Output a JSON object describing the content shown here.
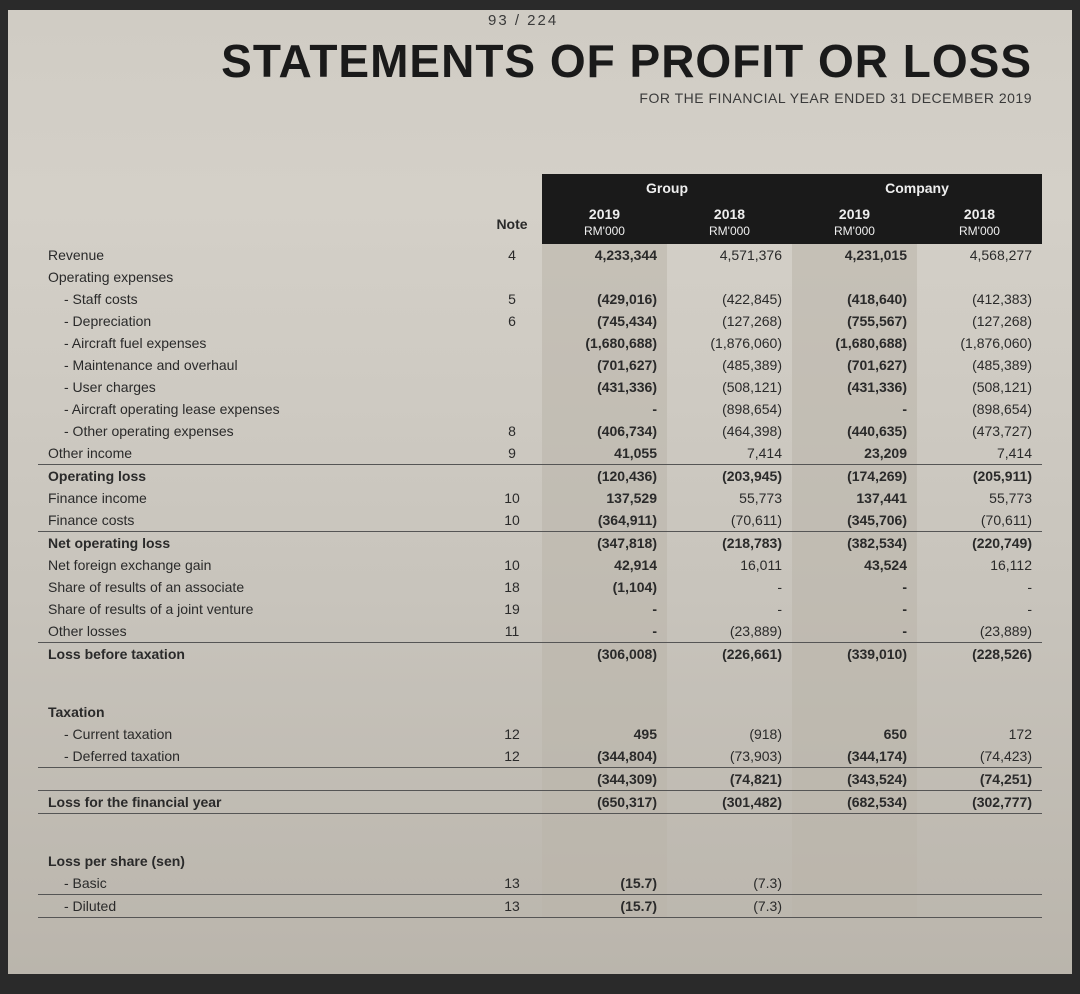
{
  "page_num": "93 / 224",
  "title": "STATEMENTS OF PROFIT OR LOSS",
  "subtitle": "FOR THE FINANCIAL YEAR ENDED 31 DECEMBER 2019",
  "columns": {
    "note_label": "Note",
    "group_label": "Group",
    "company_label": "Company",
    "year_2019": "2019",
    "year_2018": "2018",
    "unit": "RM'000"
  },
  "rows": [
    {
      "label": "Revenue",
      "note": "4",
      "g19": "4,233,344",
      "g18": "4,571,376",
      "c19": "4,231,015",
      "c18": "4,568,277"
    },
    {
      "label": "Operating expenses",
      "note": "",
      "g19": "",
      "g18": "",
      "c19": "",
      "c18": ""
    },
    {
      "label": "- Staff costs",
      "indent": true,
      "note": "5",
      "g19": "(429,016)",
      "g18": "(422,845)",
      "c19": "(418,640)",
      "c18": "(412,383)"
    },
    {
      "label": "- Depreciation",
      "indent": true,
      "note": "6",
      "g19": "(745,434)",
      "g18": "(127,268)",
      "c19": "(755,567)",
      "c18": "(127,268)"
    },
    {
      "label": "- Aircraft fuel expenses",
      "indent": true,
      "note": "",
      "g19": "(1,680,688)",
      "g18": "(1,876,060)",
      "c19": "(1,680,688)",
      "c18": "(1,876,060)"
    },
    {
      "label": "- Maintenance and overhaul",
      "indent": true,
      "note": "",
      "g19": "(701,627)",
      "g18": "(485,389)",
      "c19": "(701,627)",
      "c18": "(485,389)"
    },
    {
      "label": "- User charges",
      "indent": true,
      "note": "",
      "g19": "(431,336)",
      "g18": "(508,121)",
      "c19": "(431,336)",
      "c18": "(508,121)"
    },
    {
      "label": "- Aircraft operating lease expenses",
      "indent": true,
      "note": "",
      "g19": "-",
      "g18": "(898,654)",
      "c19": "-",
      "c18": "(898,654)"
    },
    {
      "label": "- Other operating expenses",
      "indent": true,
      "note": "8",
      "g19": "(406,734)",
      "g18": "(464,398)",
      "c19": "(440,635)",
      "c18": "(473,727)"
    },
    {
      "label": "Other income",
      "note": "9",
      "g19": "41,055",
      "g18": "7,414",
      "c19": "23,209",
      "c18": "7,414",
      "rule_bottom": true
    },
    {
      "label": "Operating loss",
      "bold": true,
      "note": "",
      "g19": "(120,436)",
      "g18": "(203,945)",
      "c19": "(174,269)",
      "c18": "(205,911)"
    },
    {
      "label": "Finance income",
      "note": "10",
      "g19": "137,529",
      "g18": "55,773",
      "c19": "137,441",
      "c18": "55,773"
    },
    {
      "label": "Finance costs",
      "note": "10",
      "g19": "(364,911)",
      "g18": "(70,611)",
      "c19": "(345,706)",
      "c18": "(70,611)",
      "rule_bottom": true
    },
    {
      "label": "Net operating loss",
      "bold": true,
      "note": "",
      "g19": "(347,818)",
      "g18": "(218,783)",
      "c19": "(382,534)",
      "c18": "(220,749)"
    },
    {
      "label": "Net foreign exchange gain",
      "note": "10",
      "g19": "42,914",
      "g18": "16,011",
      "c19": "43,524",
      "c18": "16,112"
    },
    {
      "label": "Share of results of an associate",
      "note": "18",
      "g19": "(1,104)",
      "g18": "-",
      "c19": "-",
      "c18": "-"
    },
    {
      "label": "Share of results of a joint venture",
      "note": "19",
      "g19": "-",
      "g18": "-",
      "c19": "-",
      "c18": "-"
    },
    {
      "label": "Other losses",
      "note": "11",
      "g19": "-",
      "g18": "(23,889)",
      "c19": "-",
      "c18": "(23,889)",
      "rule_bottom": true
    },
    {
      "label": "Loss before taxation",
      "bold": true,
      "note": "",
      "g19": "(306,008)",
      "g18": "(226,661)",
      "c19": "(339,010)",
      "c18": "(228,526)"
    },
    {
      "spacer": true
    },
    {
      "label": "Taxation",
      "bold": true,
      "note": "",
      "g19": "",
      "g18": "",
      "c19": "",
      "c18": ""
    },
    {
      "label": "- Current taxation",
      "indent": true,
      "note": "12",
      "g19": "495",
      "g18": "(918)",
      "c19": "650",
      "c18": "172"
    },
    {
      "label": "- Deferred taxation",
      "indent": true,
      "note": "12",
      "g19": "(344,804)",
      "g18": "(73,903)",
      "c19": "(344,174)",
      "c18": "(74,423)",
      "rule_bottom": true
    },
    {
      "label": "",
      "note": "",
      "g19": "(344,309)",
      "g18": "(74,821)",
      "c19": "(343,524)",
      "c18": "(74,251)",
      "bold": true,
      "rule_bottom": true
    },
    {
      "label": "Loss for the financial year",
      "bold": true,
      "note": "",
      "g19": "(650,317)",
      "g18": "(301,482)",
      "c19": "(682,534)",
      "c18": "(302,777)",
      "rule_bottom": true
    },
    {
      "spacer": true
    },
    {
      "label": "Loss per share (sen)",
      "bold": true,
      "note": "",
      "g19": "",
      "g18": "",
      "c19": "",
      "c18": ""
    },
    {
      "label": "- Basic",
      "indent": true,
      "note": "13",
      "g19": "(15.7)",
      "g18": "(7.3)",
      "c19": "",
      "c18": "",
      "rule_bottom": true
    },
    {
      "label": "- Diluted",
      "indent": true,
      "note": "13",
      "g19": "(15.7)",
      "g18": "(7.3)",
      "c19": "",
      "c18": "",
      "rule_bottom": true
    }
  ],
  "colors": {
    "page_bg": "#d0ccc4",
    "header_bg": "#1a1a1a",
    "header_text": "#eeeeee",
    "text": "#2a2a2a",
    "bold_col_bg": "rgba(185,180,170,0.55)"
  }
}
